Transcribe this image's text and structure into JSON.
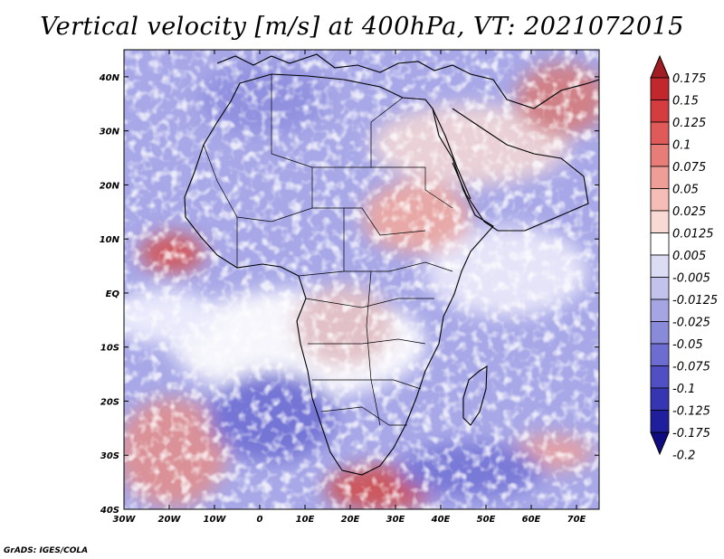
{
  "title": "Vertical velocity [m/s] at 400hPa, VT: 2021072015",
  "footer": "GrADS: IGES/COLA",
  "map": {
    "projection": "latlon",
    "lon_range": [
      -30,
      75
    ],
    "lat_range": [
      -40,
      45
    ],
    "lat_ticks": [
      {
        "value": 40,
        "label": "40N"
      },
      {
        "value": 30,
        "label": "30N"
      },
      {
        "value": 20,
        "label": "20N"
      },
      {
        "value": 10,
        "label": "10N"
      },
      {
        "value": 0,
        "label": "EQ"
      },
      {
        "value": -10,
        "label": "10S"
      },
      {
        "value": -20,
        "label": "20S"
      },
      {
        "value": -30,
        "label": "30S"
      },
      {
        "value": -40,
        "label": "40S"
      }
    ],
    "lon_ticks": [
      {
        "value": -30,
        "label": "30W"
      },
      {
        "value": -20,
        "label": "20W"
      },
      {
        "value": -10,
        "label": "10W"
      },
      {
        "value": 0,
        "label": "0"
      },
      {
        "value": 10,
        "label": "10E"
      },
      {
        "value": 20,
        "label": "20E"
      },
      {
        "value": 30,
        "label": "30E"
      },
      {
        "value": 40,
        "label": "40E"
      },
      {
        "value": 50,
        "label": "50E"
      },
      {
        "value": 60,
        "label": "60E"
      },
      {
        "value": 70,
        "label": "70E"
      }
    ]
  },
  "colorbar": {
    "labels": [
      "0.175",
      "0.15",
      "0.125",
      "0.1",
      "0.075",
      "0.05",
      "0.025",
      "0.0125",
      "0.005",
      "-0.005",
      "-0.0125",
      "-0.025",
      "-0.05",
      "-0.075",
      "-0.1",
      "-0.125",
      "-0.175",
      "-0.2"
    ],
    "colors": [
      "#a11d22",
      "#c2272d",
      "#d43c3f",
      "#e05a5a",
      "#e87c78",
      "#ef9d97",
      "#f5bdb6",
      "#f9d9d3",
      "#ffffff",
      "#dcdcf4",
      "#c2c2ec",
      "#a5a5e4",
      "#8a8adb",
      "#6d6dd1",
      "#5050c4",
      "#3636b2",
      "#1f1f9e",
      "#100b80"
    ]
  }
}
